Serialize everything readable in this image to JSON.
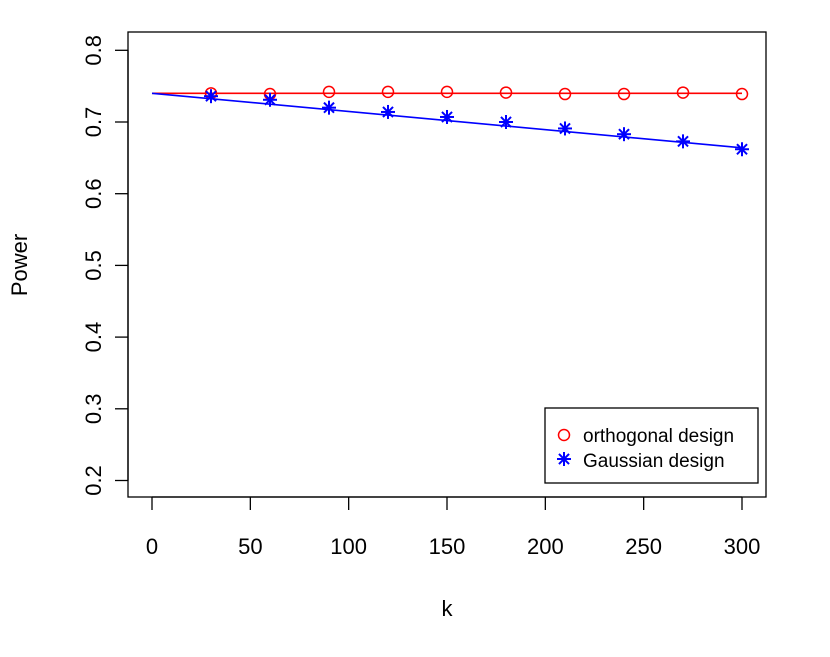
{
  "chart_data": {
    "type": "line",
    "title": "",
    "xlabel": "k",
    "ylabel": "Power",
    "xlim": [
      0,
      300
    ],
    "ylim": [
      0.2,
      0.8
    ],
    "xticks": [
      "0",
      "50",
      "100",
      "150",
      "200",
      "250",
      "300"
    ],
    "yticks": [
      "0.2",
      "0.3",
      "0.4",
      "0.5",
      "0.6",
      "0.7",
      "0.8"
    ],
    "grid": false,
    "legend_position": "bottom-right",
    "x": [
      30,
      60,
      90,
      120,
      150,
      180,
      210,
      240,
      270,
      300
    ],
    "series": [
      {
        "name": "orthogonal design",
        "color": "#ff0000",
        "marker": "circle",
        "values": [
          0.74,
          0.739,
          0.742,
          0.742,
          0.742,
          0.741,
          0.739,
          0.739,
          0.741,
          0.739
        ],
        "fit_line": [
          [
            0,
            0.74
          ],
          [
            300,
            0.74
          ]
        ]
      },
      {
        "name": "Gaussian design",
        "color": "#0000ff",
        "marker": "asterisk",
        "values": [
          0.736,
          0.731,
          0.72,
          0.714,
          0.707,
          0.7,
          0.691,
          0.683,
          0.673,
          0.662
        ],
        "fit_line": [
          [
            0,
            0.74
          ],
          [
            300,
            0.664
          ]
        ]
      }
    ]
  }
}
